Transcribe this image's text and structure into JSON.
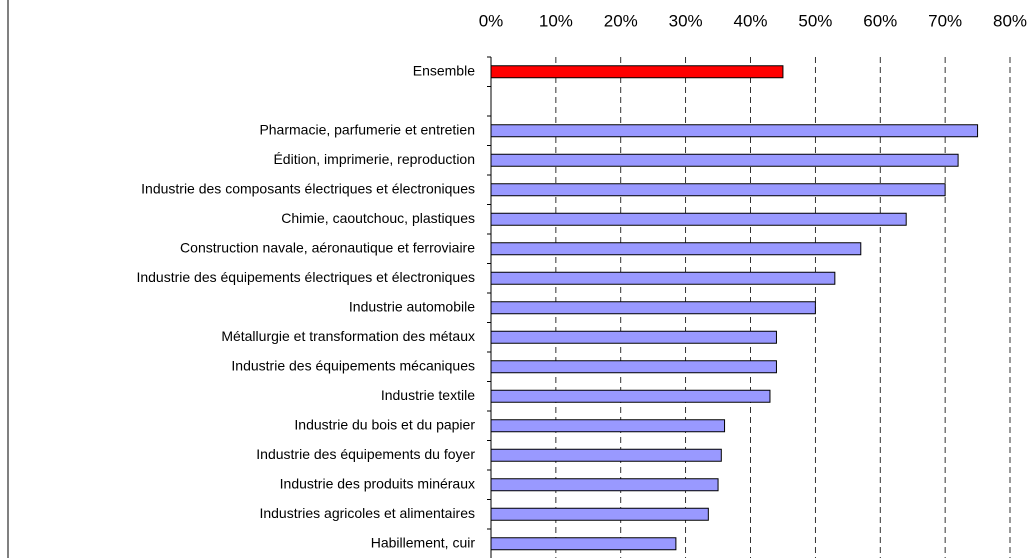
{
  "chart_data": {
    "type": "bar",
    "orientation": "horizontal",
    "categories": [
      "Ensemble",
      null,
      "Pharmacie, parfumerie et entretien",
      "Édition, imprimerie, reproduction",
      "Industrie des composants électriques et électroniques",
      "Chimie, caoutchouc, plastiques",
      "Construction navale, aéronautique et ferroviaire",
      "Industrie des équipements électriques et électroniques",
      "Industrie automobile",
      "Métallurgie et transformation des métaux",
      "Industrie des équipements mécaniques",
      "Industrie textile",
      "Industrie du bois et du papier",
      "Industrie des équipements du foyer",
      "Industrie des produits minéraux",
      "Industries agricoles et alimentaires",
      "Habillement, cuir"
    ],
    "values": [
      45,
      null,
      75,
      72,
      70,
      64,
      57,
      53,
      50,
      44,
      44,
      43,
      36,
      35.5,
      35,
      33.5,
      28.5
    ],
    "colors": [
      "#ff0000",
      null,
      "#9999ff",
      "#9999ff",
      "#9999ff",
      "#9999ff",
      "#9999ff",
      "#9999ff",
      "#9999ff",
      "#9999ff",
      "#9999ff",
      "#9999ff",
      "#9999ff",
      "#9999ff",
      "#9999ff",
      "#9999ff",
      "#9999ff"
    ],
    "xlim": [
      0,
      80
    ],
    "xticks": [
      {
        "value": 0,
        "label": "0%"
      },
      {
        "value": 10,
        "label": "10%"
      },
      {
        "value": 20,
        "label": "20%"
      },
      {
        "value": 30,
        "label": "30%"
      },
      {
        "value": 40,
        "label": "40%"
      },
      {
        "value": 50,
        "label": "50%"
      },
      {
        "value": 60,
        "label": "60%"
      },
      {
        "value": 70,
        "label": "70%"
      },
      {
        "value": 80,
        "label": "80%"
      }
    ],
    "grid": true
  }
}
